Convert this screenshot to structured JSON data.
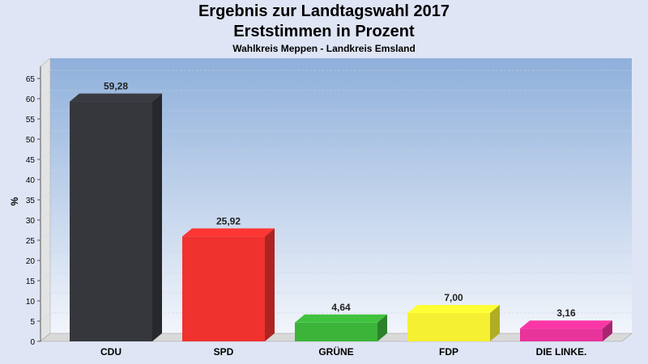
{
  "chart_data": {
    "type": "bar",
    "title": "Ergebnis zur Landtagswahl 2017",
    "subtitle": "Erststimmen in Prozent",
    "subsubtitle": "Wahlkreis Meppen - Landkreis Emsland",
    "ylabel": "%",
    "xlabel": "",
    "ylim": [
      0,
      65
    ],
    "yticks": [
      0,
      5,
      10,
      15,
      20,
      25,
      30,
      35,
      40,
      45,
      50,
      55,
      60,
      65
    ],
    "grid": true,
    "categories": [
      "CDU",
      "SPD",
      "GRÜNE",
      "FDP",
      "DIE LINKE."
    ],
    "values": [
      59.28,
      25.92,
      4.64,
      7.0,
      3.16
    ],
    "value_labels": [
      "59,28",
      "25,92",
      "4,64",
      "7,00",
      "3,16"
    ],
    "colors": [
      "#35373c",
      "#f0322f",
      "#3cb43a",
      "#f5f032",
      "#e8339b"
    ]
  }
}
